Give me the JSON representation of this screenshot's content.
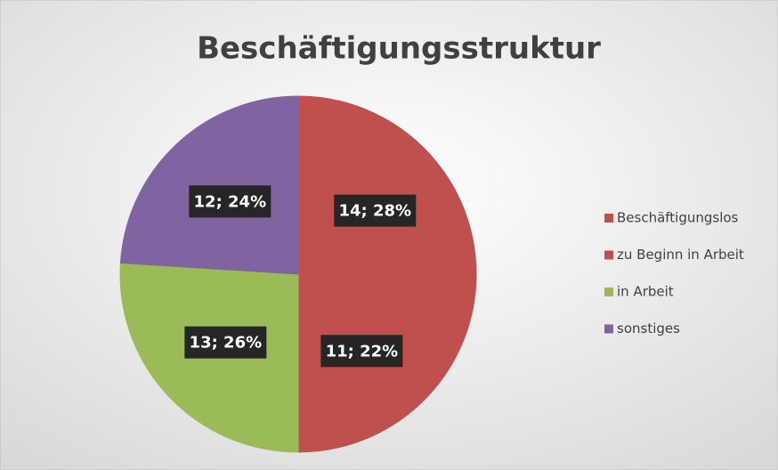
{
  "chart_data": {
    "type": "pie",
    "title": "Beschäftigungsstruktur",
    "categories": [
      "Beschäftigungslos",
      "zu Beginn in Arbeit",
      "in Arbeit",
      "sonstiges"
    ],
    "values": [
      14,
      11,
      13,
      12
    ],
    "value_labels": [
      "14; 28%",
      "11; 22%",
      "13; 26%",
      "12; 24%"
    ],
    "colors": [
      "#c0504d",
      "#c0504d",
      "#9bbb59",
      "#8064a2"
    ],
    "legend": "right"
  }
}
